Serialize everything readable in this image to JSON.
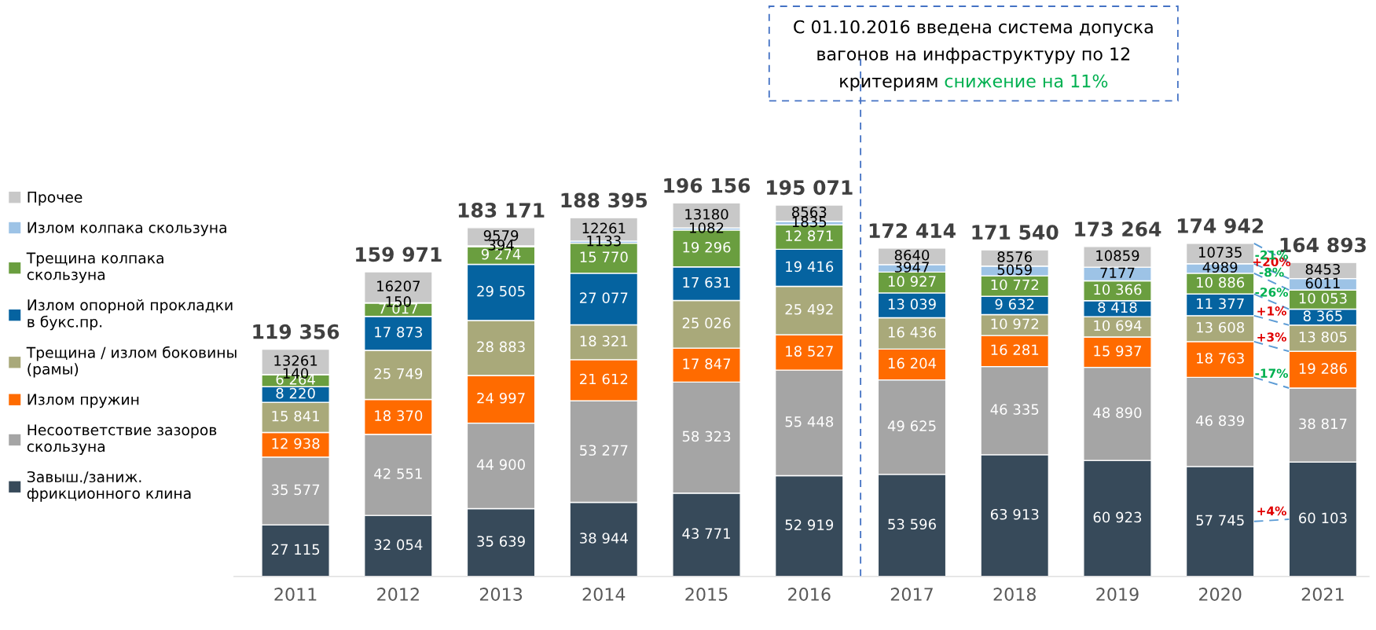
{
  "chart_data": {
    "type": "bar",
    "stacked": true,
    "legend": "left",
    "tick_labels": "x",
    "categories": [
      "2011",
      "2012",
      "2013",
      "2014",
      "2015",
      "2016",
      "2017",
      "2018",
      "2019",
      "2020",
      "2021"
    ],
    "series": [
      {
        "name": "Завыш./заниж. фрикционного клина",
        "color": "#374a5a",
        "values": [
          27115,
          32054,
          35639,
          38944,
          43771,
          52919,
          53596,
          63913,
          60923,
          57745,
          60103
        ],
        "value_labels": [
          "27 115",
          "32 054",
          "35 639",
          "38 944",
          "43 771",
          "52 919",
          "53 596",
          "63 913",
          "60 923",
          "57 745",
          "60 103"
        ]
      },
      {
        "name": "Несоответствие зазоров скользуна",
        "color": "#a5a5a5",
        "values": [
          35577,
          42551,
          44900,
          53277,
          58323,
          55448,
          49625,
          46335,
          48890,
          46839,
          38817
        ],
        "value_labels": [
          "35 577",
          "42 551",
          "44 900",
          "53 277",
          "58 323",
          "55 448",
          "49 625",
          "46 335",
          "48 890",
          "46 839",
          "38 817"
        ]
      },
      {
        "name": "Излом пружин",
        "color": "#ff6b00",
        "values": [
          12938,
          18370,
          24997,
          21612,
          17847,
          18527,
          16204,
          16281,
          15937,
          18763,
          19286
        ],
        "value_labels": [
          "12 938",
          "18 370",
          "24 997",
          "21 612",
          "17 847",
          "18 527",
          "16 204",
          "16 281",
          "15 937",
          "18 763",
          "19 286"
        ]
      },
      {
        "name": "Трещина / излом боковины (рамы)",
        "color": "#a9a97a",
        "values": [
          15841,
          25749,
          28883,
          18321,
          25026,
          25492,
          16436,
          10972,
          10694,
          13608,
          13805
        ],
        "value_labels": [
          "15 841",
          "25 749",
          "28 883",
          "18 321",
          "25 026",
          "25 492",
          "16 436",
          "10 972",
          "10 694",
          "13 608",
          "13 805"
        ]
      },
      {
        "name": "Излом опорной прокладки в букс.пр.",
        "color": "#0563a0",
        "values": [
          8220,
          17873,
          29505,
          27077,
          17631,
          19416,
          13039,
          9632,
          8418,
          11377,
          8365
        ],
        "value_labels": [
          "8 220",
          "17 873",
          "29 505",
          "27 077",
          "17 631",
          "19 416",
          "13 039",
          "9 632",
          "8 418",
          "11 377",
          "8 365"
        ]
      },
      {
        "name": "Трещина колпака скользуна",
        "color": "#6a9e3f",
        "values": [
          6264,
          7017,
          9274,
          15770,
          19296,
          12871,
          10927,
          10772,
          10366,
          10886,
          10053
        ],
        "value_labels": [
          "6 264",
          "7 017",
          "9 274",
          "15 770",
          "19 296",
          "12 871",
          "10 927",
          "10 772",
          "10 366",
          "10 886",
          "10 053"
        ]
      },
      {
        "name": "Излом колпака скользуна",
        "color": "#9dc3e6",
        "values": [
          140,
          150,
          394,
          1133,
          1082,
          1835,
          3947,
          5059,
          7177,
          4989,
          6011
        ],
        "value_labels": [
          "140",
          "150",
          "394",
          "1133",
          "1082",
          "1835",
          "3947",
          "5059",
          "7177",
          "4989",
          "6011"
        ]
      },
      {
        "name": "Прочее",
        "color": "#c8c8c8",
        "values": [
          13261,
          16207,
          9579,
          12261,
          13180,
          8563,
          8640,
          8576,
          10859,
          10735,
          8453
        ],
        "value_labels": [
          "13261",
          "16207",
          "9579",
          "12261",
          "13180",
          "8563",
          "8640",
          "8576",
          "10859",
          "10735",
          "8453"
        ]
      }
    ],
    "totals": [
      "119 356",
      "159 971",
      "183 171",
      "188 395",
      "196 156",
      "195 071",
      "172 414",
      "171 540",
      "173 264",
      "174 942",
      "164 893"
    ],
    "ref_lines": [
      {
        "axis": "x",
        "value": "2017",
        "color": "#4472c4",
        "line_style": "dashed"
      }
    ],
    "annotations": [
      "С 01.10.2016 введена система допуска вагонов на инфраструктуру по 12 критериям",
      "снижение на 11%",
      "+4%",
      "-17%",
      "+3%",
      "+1%",
      "-26%",
      "-8%",
      "+20%",
      "-21%"
    ]
  }
}
